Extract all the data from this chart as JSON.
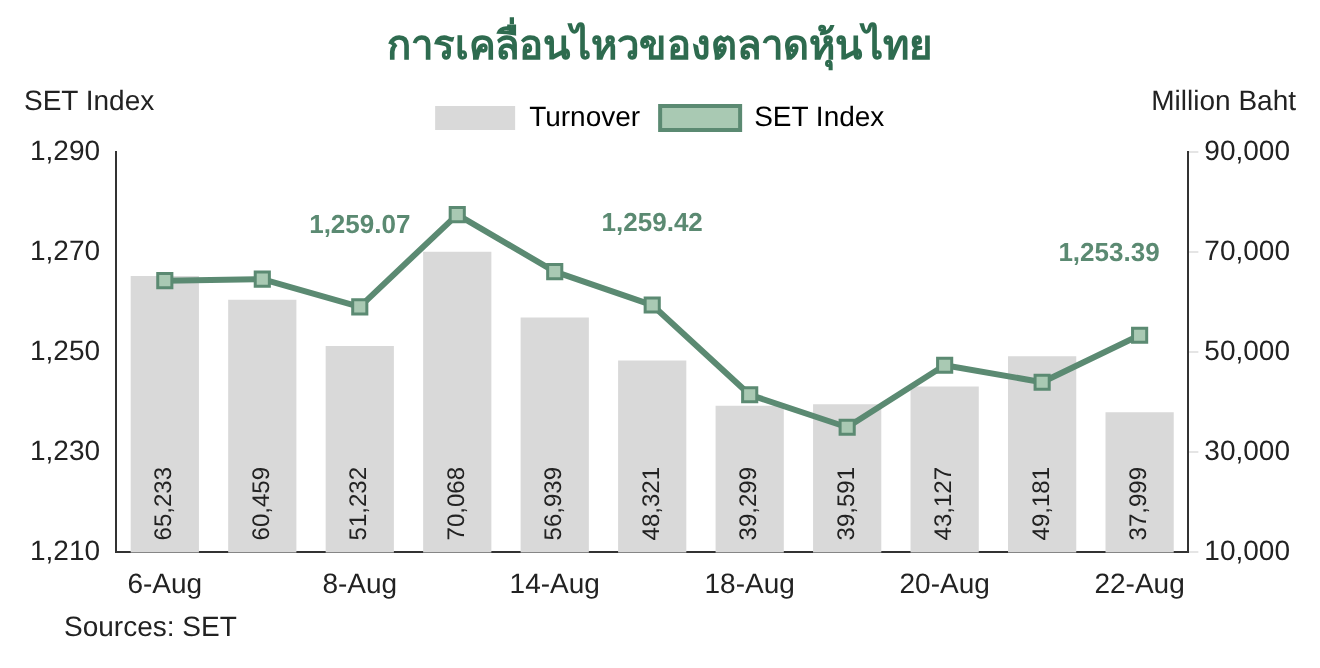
{
  "chart_data": {
    "type": "bar",
    "title": "การเคลื่อนไหวของตลาดหุ้นไทย",
    "ylabel": "SET Index",
    "y2label": "Million Baht",
    "categories": [
      "6-Aug",
      null,
      "8-Aug",
      null,
      "14-Aug",
      null,
      "18-Aug",
      null,
      "20-Aug",
      null,
      "22-Aug"
    ],
    "series": [
      {
        "name": "Turnover",
        "axis": "y2",
        "color": "#d9d9d9",
        "values": [
          65233,
          60459,
          51232,
          70068,
          56939,
          48321,
          39299,
          39591,
          43127,
          49181,
          37999
        ],
        "value_labels": [
          "65,233",
          "60,459",
          "51,232",
          "70,068",
          "56,939",
          "48,321",
          "39,299",
          "39,591",
          "43,127",
          "49,181",
          "37,999"
        ]
      },
      {
        "name": "SET Index",
        "type": "line",
        "axis": "y",
        "color": "#5b8a72",
        "values": [
          1264.3,
          1264.6,
          1259.07,
          1277.5,
          1266.1,
          1259.42,
          1241.5,
          1235,
          1247.4,
          1244,
          1253.39
        ],
        "value_labels": [
          null,
          null,
          "1,259.07",
          null,
          null,
          "1,259.42",
          null,
          null,
          null,
          null,
          "1,253.39"
        ]
      }
    ],
    "ylim": [
      1210,
      1290
    ],
    "yticks": [
      {
        "value": 1210,
        "label": "1,210"
      },
      {
        "value": 1230,
        "label": "1,230"
      },
      {
        "value": 1250,
        "label": "1,250"
      },
      {
        "value": 1270,
        "label": "1,270"
      },
      {
        "value": 1290,
        "label": "1,290"
      }
    ],
    "y2lim": [
      10000,
      90000
    ],
    "y2ticks": [
      {
        "value": 10000,
        "label": "10,000"
      },
      {
        "value": 30000,
        "label": "30,000"
      },
      {
        "value": 50000,
        "label": "50,000"
      },
      {
        "value": 70000,
        "label": "70,000"
      },
      {
        "value": 90000,
        "label": "90,000"
      }
    ],
    "legend": "top",
    "grid": false,
    "marker": "square",
    "line_style": "solid",
    "annotations": [
      "Sources: SET"
    ]
  }
}
